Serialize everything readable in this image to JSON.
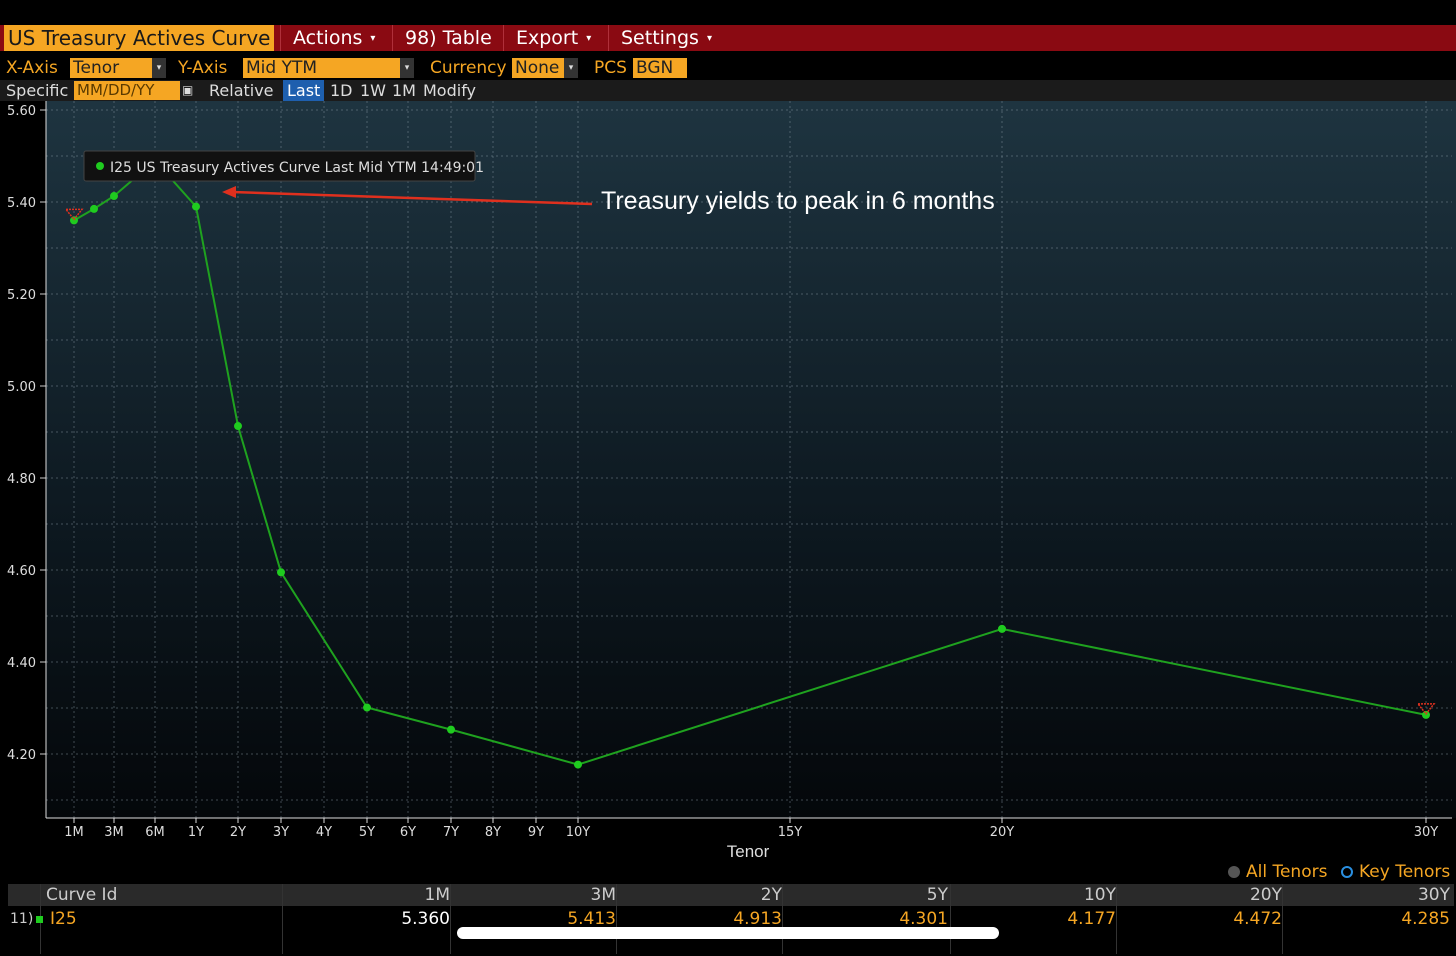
{
  "header": {
    "title": "US Treasury Actives Curve",
    "menus": [
      {
        "label": "Actions",
        "caret": "▾"
      },
      {
        "label": "98) Table",
        "caret": ""
      },
      {
        "label": "Export",
        "caret": "▾"
      },
      {
        "label": "Settings",
        "caret": "▾"
      }
    ]
  },
  "controls": {
    "xaxis_label": "X-Axis",
    "xaxis_value": "Tenor",
    "yaxis_label": "Y-Axis",
    "yaxis_value": "Mid YTM",
    "currency_label": "Currency",
    "currency_value": "None",
    "pcs_label": "PCS",
    "pcs_value": "BGN",
    "specific_label": "Specific",
    "date_placeholder": "MM/DD/YY",
    "relative_label": "Relative",
    "buttons": [
      "Last",
      "1D",
      "1W",
      "1M",
      "Modify"
    ]
  },
  "chart_data": {
    "type": "line",
    "title": "",
    "xlabel": "Tenor",
    "ylabel": "",
    "ylim": [
      4.1,
      5.6
    ],
    "yticks": [
      "5.60",
      "5.40",
      "5.20",
      "5.00",
      "4.80",
      "4.60",
      "4.40",
      "4.20"
    ],
    "xtick_labels": [
      "1M",
      "3M",
      "6M",
      "1Y",
      "2Y",
      "3Y",
      "4Y",
      "5Y",
      "6Y",
      "7Y",
      "8Y",
      "9Y",
      "10Y",
      "15Y",
      "20Y",
      "30Y"
    ],
    "xtick_years": [
      0.0833,
      0.25,
      0.5,
      1,
      2,
      3,
      4,
      5,
      6,
      7,
      8,
      9,
      10,
      15,
      20,
      30
    ],
    "grid": true,
    "legend_box": "I25 US Treasury Actives Curve Last Mid YTM 14:49:01",
    "annotation": "Treasury yields to peak in 6 months",
    "colors": {
      "line": "#1fa21f",
      "marker": "#1fcc1f",
      "accent": "#f5a623",
      "annotation_arrow": "#e0301e"
    },
    "series": [
      {
        "name": "I25",
        "x": [
          0.0833,
          0.1667,
          0.25,
          0.5,
          1,
          2,
          3,
          5,
          7,
          10,
          20,
          30
        ],
        "y": [
          5.36,
          5.385,
          5.413,
          5.49,
          5.39,
          4.913,
          4.595,
          4.301,
          4.253,
          4.177,
          4.472,
          4.285
        ]
      }
    ]
  },
  "legend": {
    "all_tenors": "All Tenors",
    "key_tenors": "Key Tenors"
  },
  "table": {
    "headers": [
      "Curve Id",
      "1M",
      "3M",
      "2Y",
      "5Y",
      "10Y",
      "20Y",
      "30Y"
    ],
    "row": {
      "index": "11)",
      "id": "I25",
      "values": [
        "5.360",
        "5.413",
        "4.913",
        "4.301",
        "4.177",
        "4.472",
        "4.285"
      ]
    }
  }
}
